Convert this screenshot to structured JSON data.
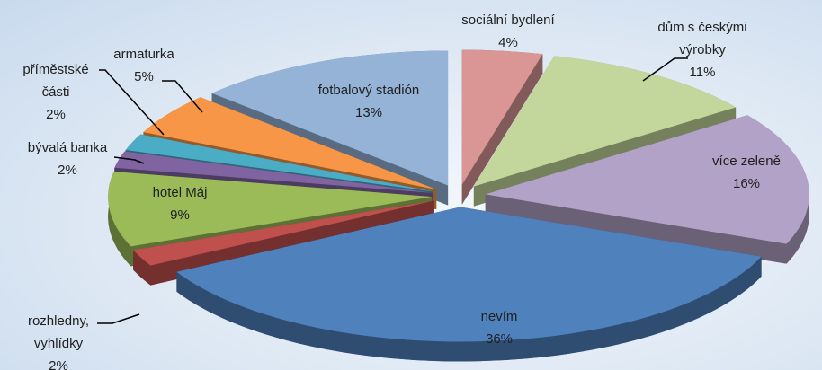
{
  "chart_data": {
    "type": "pie",
    "three_d": true,
    "exploded": true,
    "categories": [
      "sociální bydlení",
      "dům s českými výrobky",
      "více zeleně",
      "nevím",
      "rozhledny, vyhlídky",
      "hotel Máj",
      "bývalá banka",
      "příměstské části",
      "armaturka",
      "fotbalový stadión"
    ],
    "values": [
      4,
      11,
      16,
      36,
      2,
      9,
      2,
      2,
      5,
      13
    ],
    "value_labels": [
      "4%",
      "11%",
      "16%",
      "36%",
      "2%",
      "9%",
      "2%",
      "2%",
      "5%",
      "13%"
    ],
    "colors": [
      "#d99694",
      "#c3d69b",
      "#b3a2c7",
      "#4f81bd",
      "#c0504d",
      "#9bbb59",
      "#8064a2",
      "#4bacc6",
      "#f79646",
      "#95b3d7"
    ]
  }
}
